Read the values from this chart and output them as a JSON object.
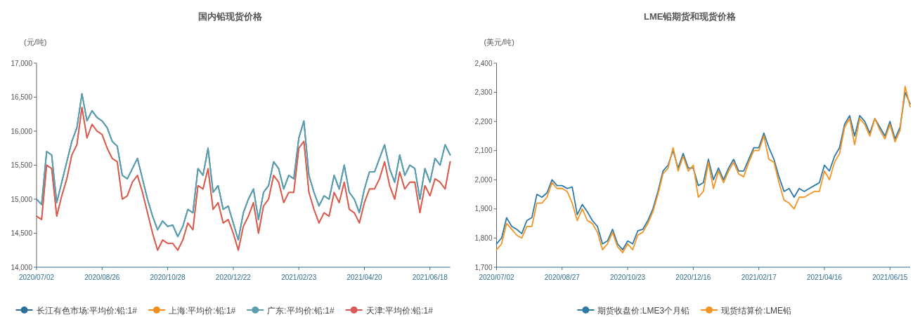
{
  "chart_data": [
    {
      "type": "line",
      "title": "国内铅现货价格",
      "ylabel": "(元/吨)",
      "legend": "bottom",
      "categories": [
        "2020/07/02",
        null,
        null,
        null,
        null,
        null,
        null,
        null,
        null,
        null,
        null,
        null,
        null,
        "2020/08/26",
        null,
        null,
        null,
        null,
        null,
        null,
        null,
        null,
        null,
        null,
        null,
        null,
        "2020/10/28",
        null,
        null,
        null,
        null,
        null,
        null,
        null,
        null,
        null,
        null,
        null,
        null,
        "2020/12/22",
        null,
        null,
        null,
        null,
        null,
        null,
        null,
        null,
        null,
        null,
        null,
        null,
        "2021/02/23",
        null,
        null,
        null,
        null,
        null,
        null,
        null,
        null,
        null,
        null,
        null,
        null,
        "2021/04/20",
        null,
        null,
        null,
        null,
        null,
        null,
        null,
        null,
        null,
        null,
        null,
        null,
        "2021/06/18",
        null,
        null,
        null,
        null
      ],
      "ylim": [
        14000,
        17000
      ],
      "yticks": [
        {
          "value": 14000,
          "label": "14,000"
        },
        {
          "value": 14500,
          "label": "14,500"
        },
        {
          "value": 15000,
          "label": "15,000"
        },
        {
          "value": 15500,
          "label": "15,500"
        },
        {
          "value": 16000,
          "label": "16,000"
        },
        {
          "value": 16500,
          "label": "16,500"
        },
        {
          "value": 17000,
          "label": "17,000"
        }
      ],
      "series": [
        {
          "name": "长江有色市场:平均价:铅:1#",
          "color": "#2b6f9a",
          "values": [
            15000,
            14920,
            15700,
            15650,
            14950,
            15250,
            15550,
            15850,
            16050,
            16550,
            16150,
            16300,
            16200,
            16150,
            16050,
            15850,
            15780,
            15350,
            15300,
            15450,
            15600,
            15300,
            15000,
            14750,
            14550,
            14680,
            14600,
            14620,
            14450,
            14600,
            14850,
            14800,
            15450,
            15350,
            15750,
            15100,
            15200,
            14850,
            14900,
            14650,
            14400,
            14800,
            15000,
            15150,
            14700,
            15100,
            15200,
            15550,
            15450,
            15150,
            15350,
            15300,
            15900,
            16150,
            15350,
            15100,
            14900,
            15050,
            15000,
            15350,
            15150,
            15500,
            15100,
            15000,
            14800,
            15150,
            15400,
            15400,
            15600,
            15800,
            15450,
            15250,
            15650,
            15350,
            15500,
            15450,
            15000,
            15450,
            15250,
            15600,
            15500,
            15800,
            15650
          ]
        },
        {
          "name": "上海:平均价:铅:1#",
          "color": "#f28e1c",
          "values": [
            14750,
            14700,
            15500,
            15450,
            14750,
            15050,
            15300,
            15650,
            15800,
            16350,
            15900,
            16100,
            16000,
            15950,
            15750,
            15600,
            15550,
            15000,
            15050,
            15250,
            15350,
            15100,
            14800,
            14500,
            14250,
            14400,
            14350,
            14350,
            14250,
            14400,
            14650,
            14550,
            15200,
            15150,
            15450,
            14850,
            14950,
            14650,
            14700,
            14500,
            14250,
            14600,
            14750,
            14950,
            14500,
            14900,
            15000,
            15350,
            15250,
            14950,
            15100,
            15100,
            15750,
            15850,
            15100,
            14850,
            14650,
            14800,
            14750,
            15100,
            14950,
            15250,
            14850,
            14800,
            14650,
            14950,
            15150,
            15150,
            15300,
            15550,
            15200,
            15000,
            15400,
            15150,
            15250,
            15250,
            14800,
            15200,
            15050,
            15300,
            15250,
            15150,
            15550
          ]
        },
        {
          "name": "广东:平均价:铅:1#",
          "color": "#5a9fb0",
          "values": [
            15000,
            14920,
            15700,
            15650,
            14950,
            15250,
            15550,
            15850,
            16050,
            16550,
            16150,
            16300,
            16200,
            16150,
            16050,
            15850,
            15780,
            15350,
            15300,
            15450,
            15600,
            15300,
            15000,
            14750,
            14550,
            14680,
            14600,
            14620,
            14450,
            14600,
            14850,
            14800,
            15450,
            15350,
            15750,
            15100,
            15200,
            14850,
            14900,
            14650,
            14400,
            14800,
            15000,
            15150,
            14700,
            15100,
            15200,
            15550,
            15450,
            15150,
            15350,
            15300,
            15900,
            16150,
            15350,
            15100,
            14900,
            15050,
            15000,
            15350,
            15150,
            15500,
            15100,
            15000,
            14800,
            15150,
            15400,
            15400,
            15600,
            15800,
            15450,
            15250,
            15650,
            15350,
            15500,
            15450,
            15000,
            15450,
            15250,
            15600,
            15500,
            15800,
            15650
          ]
        },
        {
          "name": "天津:平均价:铅:1#",
          "color": "#d9585a",
          "values": [
            14750,
            14700,
            15500,
            15450,
            14750,
            15050,
            15300,
            15650,
            15800,
            16350,
            15900,
            16100,
            16000,
            15950,
            15750,
            15600,
            15550,
            15000,
            15050,
            15250,
            15350,
            15100,
            14800,
            14500,
            14250,
            14400,
            14350,
            14350,
            14250,
            14400,
            14650,
            14550,
            15200,
            15150,
            15450,
            14850,
            14950,
            14650,
            14700,
            14500,
            14250,
            14600,
            14750,
            14950,
            14500,
            14900,
            15000,
            15350,
            15250,
            14950,
            15100,
            15100,
            15750,
            15850,
            15100,
            14850,
            14650,
            14800,
            14750,
            15100,
            14950,
            15250,
            14850,
            14800,
            14650,
            14950,
            15150,
            15150,
            15300,
            15550,
            15200,
            15000,
            15400,
            15150,
            15250,
            15250,
            14800,
            15200,
            15050,
            15300,
            15250,
            15150,
            15550
          ]
        }
      ]
    },
    {
      "type": "line",
      "title": "LME铅期货和现货价格",
      "ylabel": "(美元/吨)",
      "legend": "bottom",
      "categories": [
        "2020/07/02",
        null,
        null,
        null,
        null,
        null,
        null,
        null,
        null,
        null,
        null,
        null,
        null,
        "2020/08/27",
        null,
        null,
        null,
        null,
        null,
        null,
        null,
        null,
        null,
        null,
        null,
        null,
        "2020/10/23",
        null,
        null,
        null,
        null,
        null,
        null,
        null,
        null,
        null,
        null,
        null,
        null,
        "2020/12/16",
        null,
        null,
        null,
        null,
        null,
        null,
        null,
        null,
        null,
        null,
        null,
        null,
        "2021/02/17",
        null,
        null,
        null,
        null,
        null,
        null,
        null,
        null,
        null,
        null,
        null,
        null,
        "2021/04/16",
        null,
        null,
        null,
        null,
        null,
        null,
        null,
        null,
        null,
        null,
        null,
        null,
        "2021/06/15",
        null,
        null,
        null,
        null
      ],
      "ylim": [
        1700,
        2400
      ],
      "yticks": [
        {
          "value": 1700,
          "label": "1,700"
        },
        {
          "value": 1800,
          "label": "1,800"
        },
        {
          "value": 1900,
          "label": "1,900"
        },
        {
          "value": 2000,
          "label": "2,000"
        },
        {
          "value": 2100,
          "label": "2,100"
        },
        {
          "value": 2200,
          "label": "2,200"
        },
        {
          "value": 2300,
          "label": "2,300"
        },
        {
          "value": 2400,
          "label": "2,400"
        }
      ],
      "series": [
        {
          "name": "期货收盘价:LME3个月铅",
          "color": "#2d79a8",
          "values": [
            1780,
            1800,
            1870,
            1840,
            1830,
            1815,
            1860,
            1870,
            1950,
            1940,
            1955,
            2000,
            1980,
            1980,
            1970,
            1975,
            1880,
            1915,
            1890,
            1860,
            1840,
            1780,
            1790,
            1830,
            1780,
            1760,
            1790,
            1780,
            1825,
            1830,
            1860,
            1900,
            1960,
            2030,
            2050,
            2100,
            2040,
            2090,
            2040,
            2040,
            1980,
            1990,
            2070,
            2000,
            2040,
            2000,
            2040,
            2070,
            2030,
            2030,
            2070,
            2110,
            2110,
            2160,
            2110,
            2070,
            2010,
            1960,
            1970,
            1940,
            1970,
            1960,
            1970,
            1980,
            1990,
            2050,
            2030,
            2080,
            2110,
            2190,
            2220,
            2150,
            2220,
            2200,
            2160,
            2210,
            2180,
            2150,
            2200,
            2140,
            2180,
            2300,
            2260
          ]
        },
        {
          "name": "现货结算价:LME铅",
          "color": "#f39422",
          "values": [
            1760,
            1780,
            1850,
            1830,
            1810,
            1800,
            1840,
            1840,
            1920,
            1920,
            1940,
            1990,
            1970,
            1970,
            1960,
            1920,
            1860,
            1900,
            1860,
            1850,
            1820,
            1760,
            1780,
            1820,
            1770,
            1750,
            1780,
            1760,
            1810,
            1820,
            1850,
            1890,
            1950,
            2020,
            2040,
            2110,
            2030,
            2080,
            2030,
            2050,
            1940,
            1960,
            2060,
            1970,
            2030,
            1990,
            2030,
            2060,
            2020,
            2010,
            2060,
            2100,
            2100,
            2150,
            2070,
            2060,
            1990,
            1930,
            1920,
            1900,
            1940,
            1940,
            1950,
            1960,
            1960,
            2030,
            2000,
            2060,
            2090,
            2180,
            2210,
            2120,
            2210,
            2190,
            2150,
            2210,
            2170,
            2140,
            2190,
            2130,
            2170,
            2320,
            2250
          ]
        }
      ]
    }
  ]
}
